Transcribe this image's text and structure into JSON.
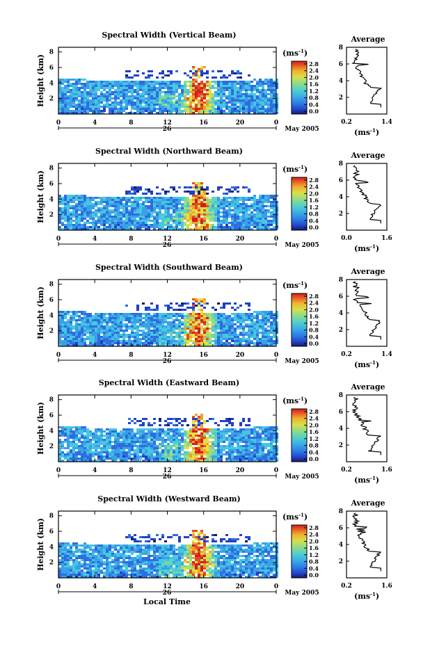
{
  "chart_data": [
    {
      "type": "heatmap",
      "title": "Spectral Width (Vertical Beam)",
      "ylabel": "Height (km)",
      "x_ticks": [
        "0",
        "4",
        "8",
        "12",
        "16",
        "20",
        "0"
      ],
      "y_ticks": [
        "2",
        "4",
        "6",
        "8"
      ],
      "date_label": "26",
      "month_label": "May 2005",
      "colorbar_unit": "(ms",
      "colorbar_sup": "-1",
      "colorbar_unit_close": ")",
      "colorbar_ticks": [
        "2.8",
        "2.4",
        "2.0",
        "1.6",
        "1.2",
        "0.8",
        "0.4",
        "0.0"
      ],
      "profile_title": "Average",
      "profile_x_ticks": [
        "0.2",
        "1.4"
      ],
      "profile_y_ticks": [
        "2",
        "4",
        "6",
        "8"
      ],
      "profile_xlabel": "(ms",
      "profile_xlabel_sup": "-1",
      "profile_xlabel_close": ")"
    },
    {
      "type": "heatmap",
      "title": "Spectral Width (Northward Beam)",
      "ylabel": "Height (km)",
      "x_ticks": [
        "0",
        "4",
        "8",
        "12",
        "16",
        "20",
        "0"
      ],
      "y_ticks": [
        "2",
        "4",
        "6",
        "8"
      ],
      "date_label": "26",
      "month_label": "May 2005",
      "colorbar_unit": "(ms",
      "colorbar_sup": "-1",
      "colorbar_unit_close": ")",
      "colorbar_ticks": [
        "2.8",
        "2.4",
        "2.0",
        "1.6",
        "1.2",
        "0.8",
        "0.4",
        "0.0"
      ],
      "profile_title": "Average",
      "profile_x_ticks": [
        "0.0",
        "1.6"
      ],
      "profile_y_ticks": [
        "2",
        "4",
        "6",
        "8"
      ],
      "profile_xlabel": "(ms",
      "profile_xlabel_sup": "-1",
      "profile_xlabel_close": ")"
    },
    {
      "type": "heatmap",
      "title": "Spectral Width (Southward Beam)",
      "ylabel": "Height (km)",
      "x_ticks": [
        "0",
        "4",
        "8",
        "12",
        "16",
        "20",
        "0"
      ],
      "y_ticks": [
        "2",
        "4",
        "6",
        "8"
      ],
      "date_label": "26",
      "month_label": "May 2005",
      "colorbar_unit": "(ms",
      "colorbar_sup": "-1",
      "colorbar_unit_close": ")",
      "colorbar_ticks": [
        "2.8",
        "2.4",
        "2.0",
        "1.6",
        "1.2",
        "0.8",
        "0.4",
        "0.0"
      ],
      "profile_title": "Average",
      "profile_x_ticks": [
        "0.2",
        "1.4"
      ],
      "profile_y_ticks": [
        "2",
        "4",
        "6",
        "8"
      ],
      "profile_xlabel": "(ms",
      "profile_xlabel_sup": "-1",
      "profile_xlabel_close": ")"
    },
    {
      "type": "heatmap",
      "title": "Spectral Width (Eastward Beam)",
      "ylabel": "Height (km)",
      "x_ticks": [
        "0",
        "4",
        "8",
        "12",
        "16",
        "20",
        "0"
      ],
      "y_ticks": [
        "2",
        "4",
        "6",
        "8"
      ],
      "date_label": "26",
      "month_label": "May 2005",
      "colorbar_unit": "(ms",
      "colorbar_sup": "-1",
      "colorbar_unit_close": ")",
      "colorbar_ticks": [
        "2.8",
        "2.4",
        "2.0",
        "1.6",
        "1.2",
        "0.8",
        "0.4",
        "0.0"
      ],
      "profile_title": "Average",
      "profile_x_ticks": [
        "0.2",
        "1.6"
      ],
      "profile_y_ticks": [
        "2",
        "4",
        "6",
        "8"
      ],
      "profile_xlabel": "(ms",
      "profile_xlabel_sup": "-1",
      "profile_xlabel_close": ")"
    },
    {
      "type": "heatmap",
      "title": "Spectral Width (Westward Beam)",
      "ylabel": "Height (km)",
      "x_ticks": [
        "0",
        "4",
        "8",
        "12",
        "16",
        "20",
        "0"
      ],
      "y_ticks": [
        "2",
        "4",
        "6",
        "8"
      ],
      "date_label": "26",
      "month_label": "May 2005",
      "xlabel": "Local Time",
      "colorbar_unit": "(ms",
      "colorbar_sup": "-1",
      "colorbar_unit_close": ")",
      "colorbar_ticks": [
        "2.8",
        "2.4",
        "2.0",
        "1.6",
        "1.2",
        "0.8",
        "0.4",
        "0.0"
      ],
      "profile_title": "Average",
      "profile_x_ticks": [
        "0.2",
        "1.6"
      ],
      "profile_y_ticks": [
        "2",
        "4",
        "6",
        "8"
      ],
      "profile_xlabel": "(ms",
      "profile_xlabel_sup": "-1",
      "profile_xlabel_close": ")"
    }
  ],
  "colors": {
    "colormap": [
      "#1a1a66",
      "#2040c8",
      "#2e6de0",
      "#3aa0e8",
      "#45c8e0",
      "#6ad6b0",
      "#a8e070",
      "#e8e040",
      "#f0a030",
      "#e05020",
      "#d02020"
    ]
  }
}
